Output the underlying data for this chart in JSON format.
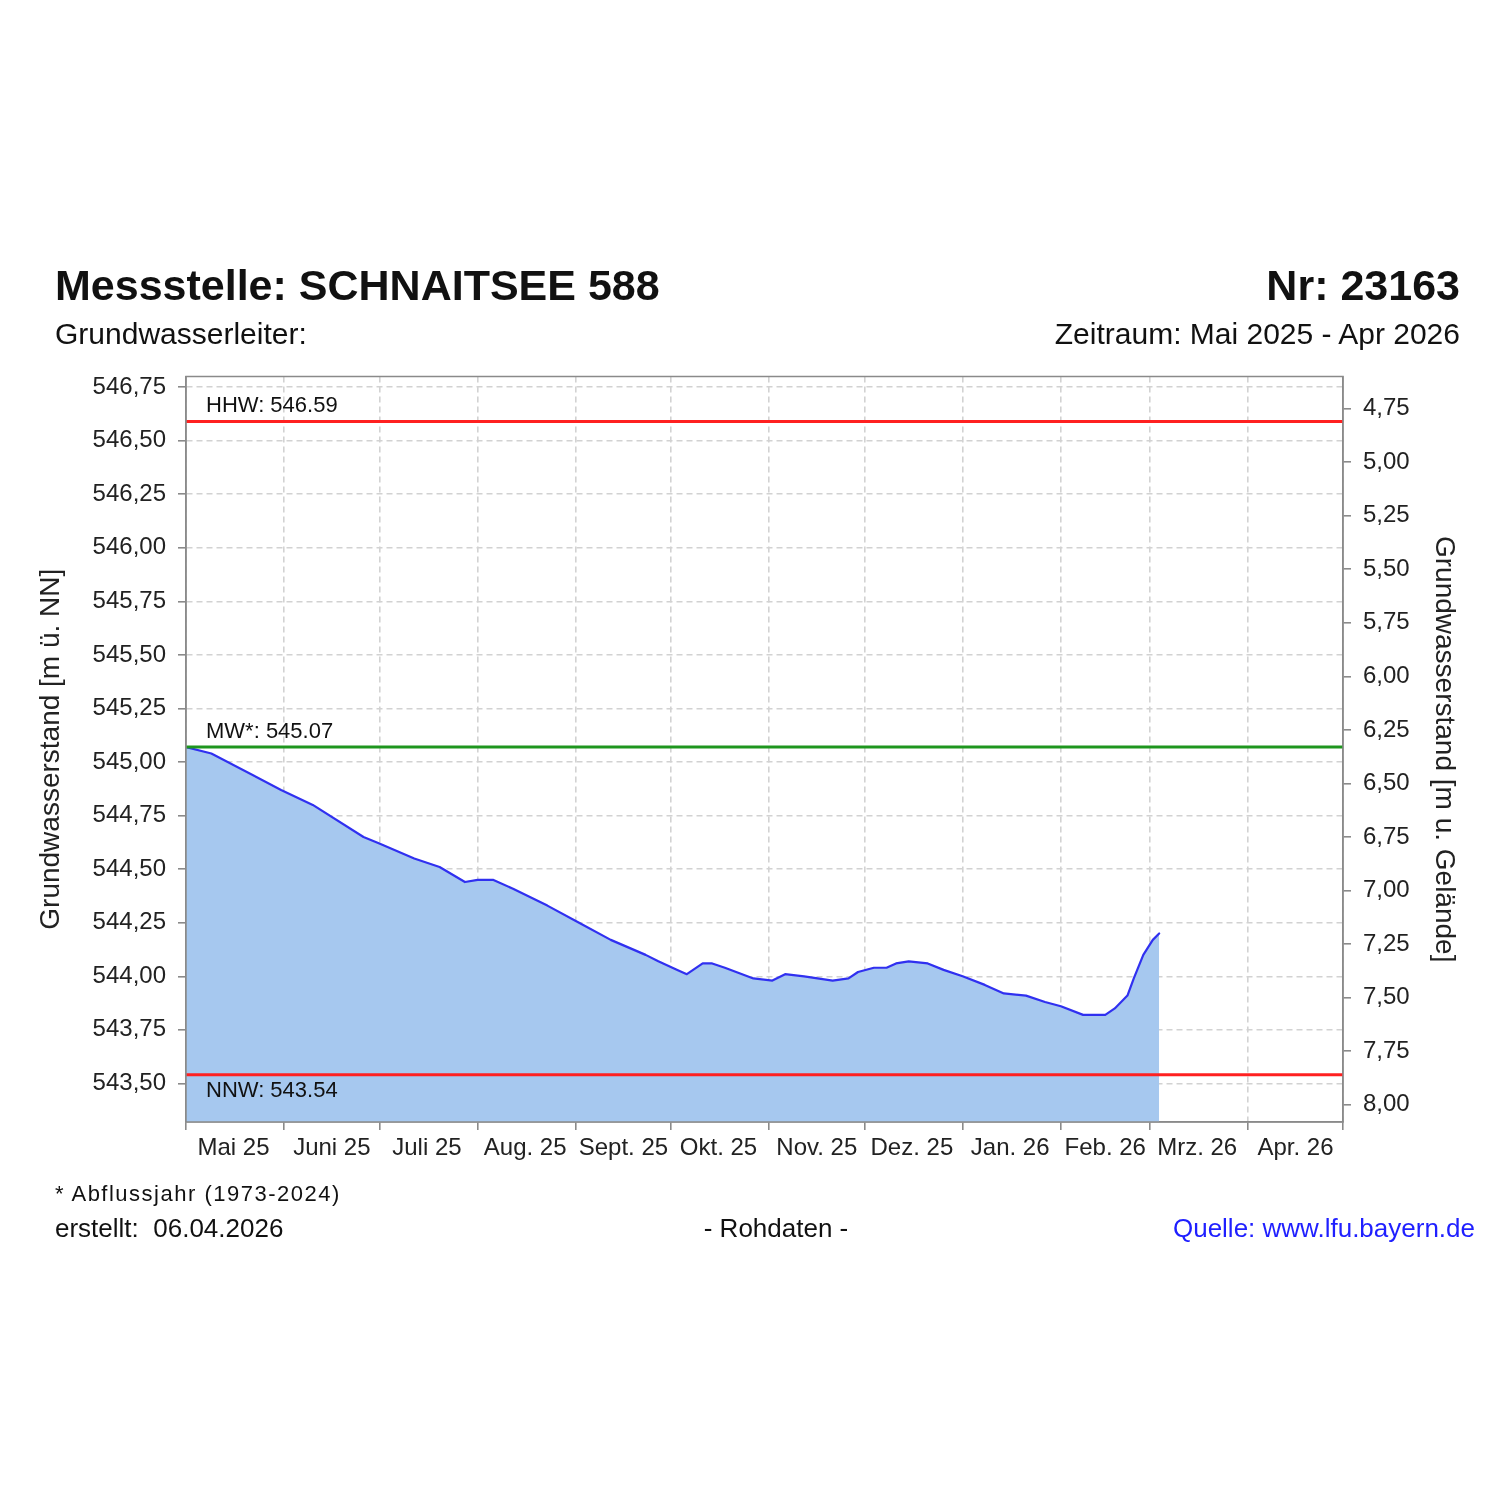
{
  "chart_data": {
    "type": "area",
    "title": "Messstelle: SCHNAITSEE 588",
    "subtitle": "Grundwasserleiter:",
    "ylabel": "Grundwasserstand [m ü. NN]",
    "y2label": "Grundwasserstand [m u. Gelände]",
    "annotations": [
      "Nr: 23163",
      "Zeitraum: Mai 2025 - Apr 2026",
      "* Abflussjahr (1973-2024)",
      "erstellt:  06.04.2026",
      "- Rohdaten -",
      "Quelle: www.lfu.bayern.de"
    ],
    "x": [
      "2025-05-01",
      "2025-05-09",
      "2025-05-31",
      "2025-06-10",
      "2025-06-26",
      "2025-07-01",
      "2025-07-12",
      "2025-07-20",
      "2025-07-28",
      "2025-08-01",
      "2025-08-06",
      "2025-08-12",
      "2025-08-23",
      "2025-09-02",
      "2025-09-12",
      "2025-09-23",
      "2025-09-27",
      "2025-10-03",
      "2025-10-06",
      "2025-10-11",
      "2025-10-14",
      "2025-10-18",
      "2025-10-27",
      "2025-11-02",
      "2025-11-06",
      "2025-11-12",
      "2025-11-21",
      "2025-11-26",
      "2025-11-29",
      "2025-12-04",
      "2025-12-08",
      "2025-12-11",
      "2025-12-15",
      "2025-12-21",
      "2025-12-26",
      "2026-01-01",
      "2026-01-08",
      "2026-01-14",
      "2026-01-21",
      "2026-01-27",
      "2026-02-01",
      "2026-02-08",
      "2026-02-15",
      "2026-02-18",
      "2026-02-22",
      "2026-02-24",
      "2026-02-27",
      "2026-03-02",
      "2026-03-04"
    ],
    "series": [
      {
        "color": "#3030f0",
        "values": [
          545.07,
          545.04,
          544.87,
          544.8,
          544.65,
          544.62,
          544.55,
          544.51,
          544.44,
          544.45,
          544.45,
          544.41,
          544.33,
          544.25,
          544.17,
          544.1,
          544.07,
          544.03,
          544.01,
          544.06,
          544.06,
          544.04,
          543.99,
          543.98,
          544.01,
          544.0,
          543.98,
          543.99,
          544.02,
          544.04,
          544.04,
          544.06,
          544.07,
          544.06,
          544.03,
          544.0,
          543.96,
          543.92,
          543.91,
          543.88,
          543.86,
          543.82,
          543.82,
          543.85,
          543.91,
          543.99,
          544.1,
          544.17,
          544.2
        ]
      }
    ],
    "xlim": [
      "2025-05-01",
      "2026-05-01"
    ],
    "xticks": [
      {
        "value": "2025-05-01",
        "label": null
      },
      {
        "value": "2025-05-16",
        "label": "Mai 25"
      },
      {
        "value": "2025-06-01",
        "label": null
      },
      {
        "value": "2025-06-16",
        "label": "Juni 25"
      },
      {
        "value": "2025-07-01",
        "label": null
      },
      {
        "value": "2025-07-16",
        "label": "Juli 25"
      },
      {
        "value": "2025-08-01",
        "label": null
      },
      {
        "value": "2025-08-16",
        "label": "Aug. 25"
      },
      {
        "value": "2025-09-01",
        "label": null
      },
      {
        "value": "2025-09-16",
        "label": "Sept. 25"
      },
      {
        "value": "2025-10-01",
        "label": null
      },
      {
        "value": "2025-10-16",
        "label": "Okt. 25"
      },
      {
        "value": "2025-11-01",
        "label": null
      },
      {
        "value": "2025-11-16",
        "label": "Nov. 25"
      },
      {
        "value": "2025-12-01",
        "label": null
      },
      {
        "value": "2025-12-16",
        "label": "Dez. 25"
      },
      {
        "value": "2026-01-01",
        "label": null
      },
      {
        "value": "2026-01-16",
        "label": "Jan. 26"
      },
      {
        "value": "2026-02-01",
        "label": null
      },
      {
        "value": "2026-02-15",
        "label": "Feb. 26"
      },
      {
        "value": "2026-03-01",
        "label": null
      },
      {
        "value": "2026-03-16",
        "label": "Mrz. 26"
      },
      {
        "value": "2026-04-01",
        "label": null
      },
      {
        "value": "2026-04-16",
        "label": "Apr. 26"
      },
      {
        "value": "2026-05-01",
        "label": null
      }
    ],
    "ylim": [
      543.32,
      546.8
    ],
    "yticks": [
      {
        "value": 543.5,
        "label": "543,50"
      },
      {
        "value": 543.75,
        "label": "543,75"
      },
      {
        "value": 544,
        "label": "544,00"
      },
      {
        "value": 544.25,
        "label": "544,25"
      },
      {
        "value": 544.5,
        "label": "544,50"
      },
      {
        "value": 544.75,
        "label": "544,75"
      },
      {
        "value": 545,
        "label": "545,00"
      },
      {
        "value": 545.25,
        "label": "545,25"
      },
      {
        "value": 545.5,
        "label": "545,50"
      },
      {
        "value": 545.75,
        "label": "545,75"
      },
      {
        "value": 546,
        "label": "546,00"
      },
      {
        "value": 546.25,
        "label": "546,25"
      },
      {
        "value": 546.5,
        "label": "546,50"
      },
      {
        "value": 546.75,
        "label": "546,75"
      }
    ],
    "y2lim": [
      8.08,
      4.6
    ],
    "y2ticks": [
      {
        "value": 4.75,
        "label": "4,75"
      },
      {
        "value": 5,
        "label": "5,00"
      },
      {
        "value": 5.25,
        "label": "5,25"
      },
      {
        "value": 5.5,
        "label": "5,50"
      },
      {
        "value": 5.75,
        "label": "5,75"
      },
      {
        "value": 6,
        "label": "6,00"
      },
      {
        "value": 6.25,
        "label": "6,25"
      },
      {
        "value": 6.5,
        "label": "6,50"
      },
      {
        "value": 6.75,
        "label": "6,75"
      },
      {
        "value": 7,
        "label": "7,00"
      },
      {
        "value": 7.25,
        "label": "7,25"
      },
      {
        "value": 7.5,
        "label": "7,50"
      },
      {
        "value": 7.75,
        "label": "7,75"
      },
      {
        "value": 8,
        "label": "8,00"
      }
    ],
    "ref_lines": [
      {
        "axis": "y",
        "value": 546.59,
        "label": "HHW: 546.59",
        "color": "#ff2020"
      },
      {
        "axis": "y",
        "value": 545.07,
        "label": "MW*: 545.07",
        "color": "#1e961e"
      },
      {
        "axis": "y",
        "value": 543.54,
        "label": "NNW: 543.54",
        "color": "#ff2020"
      }
    ],
    "grid": true
  }
}
